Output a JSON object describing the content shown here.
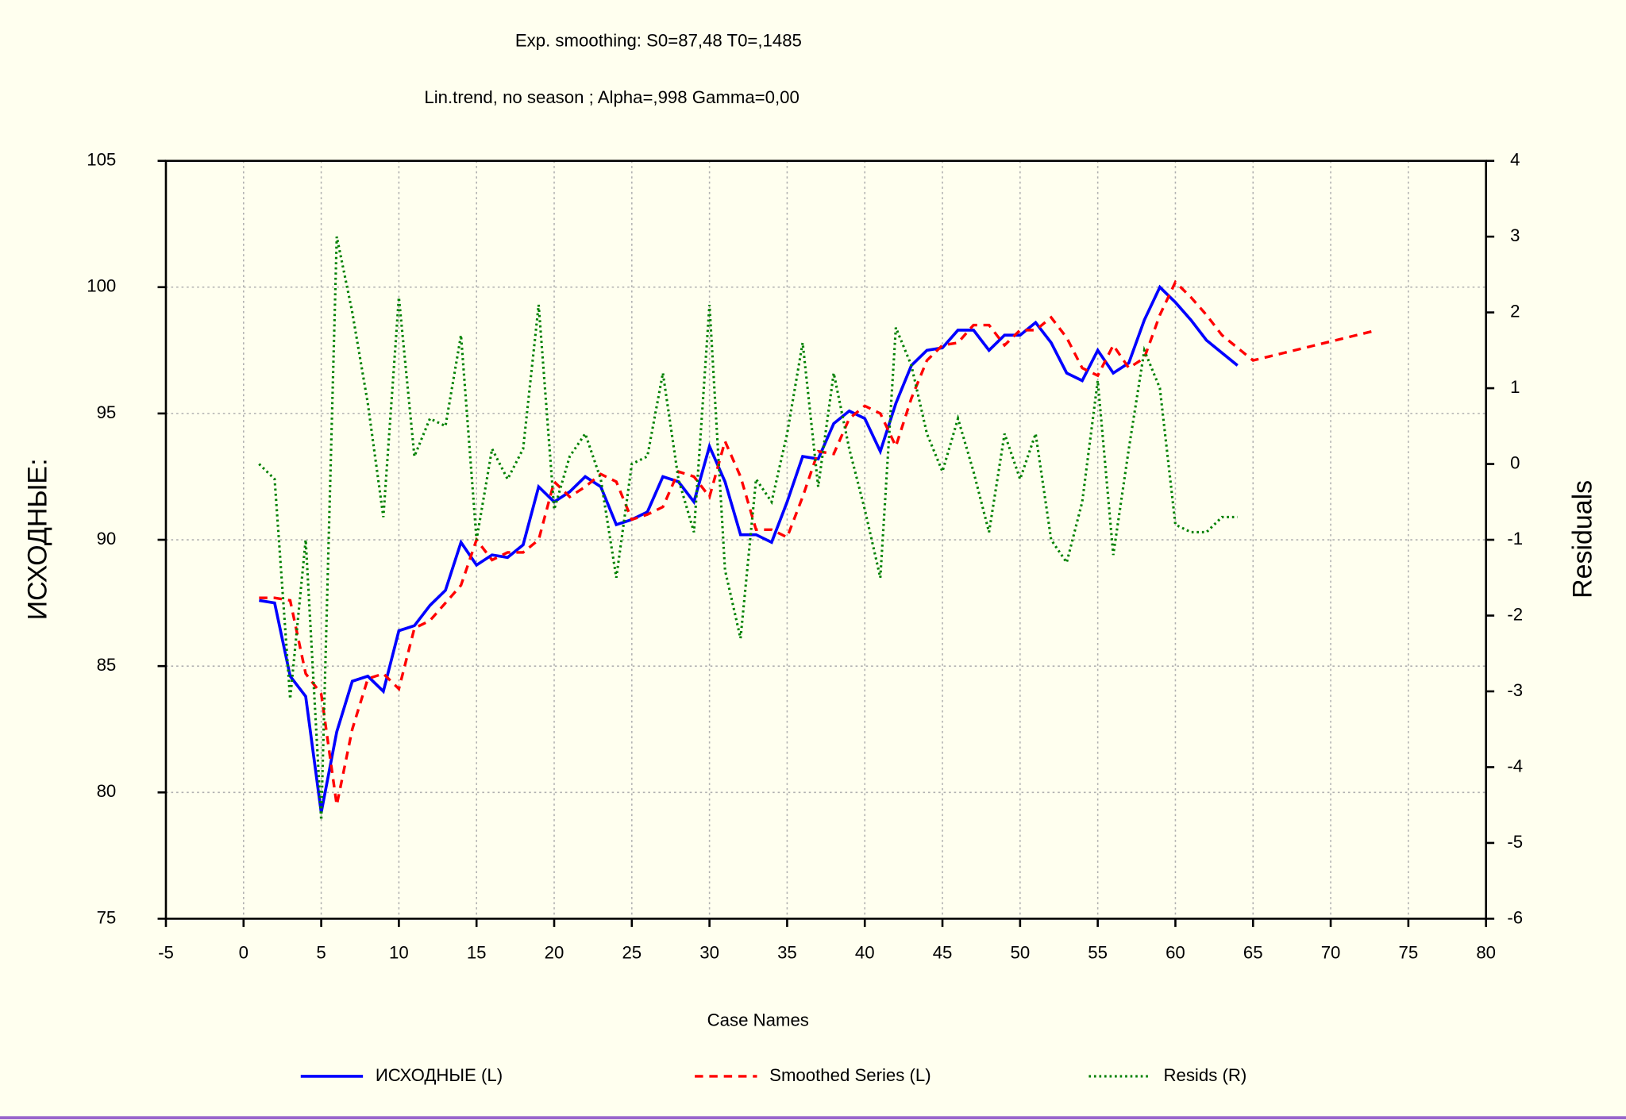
{
  "chart_data": {
    "type": "line",
    "title": "Exp. smoothing: S0=87,48 T0=,1485",
    "subtitle": "Lin.trend, no season ; Alpha=,998 Gamma=0,00",
    "x_label": "Case Names",
    "y_label": "ИСХОДНЫЕ:",
    "y2_label": "Residuals",
    "x": [
      1,
      2,
      3,
      4,
      5,
      6,
      7,
      8,
      9,
      10,
      11,
      12,
      13,
      14,
      15,
      16,
      17,
      18,
      19,
      20,
      21,
      22,
      23,
      24,
      25,
      26,
      27,
      28,
      29,
      30,
      31,
      32,
      33,
      34,
      35,
      36,
      37,
      38,
      39,
      40,
      41,
      42,
      43,
      44,
      45,
      46,
      47,
      48,
      49,
      50,
      51,
      52,
      53,
      54,
      55,
      56,
      57,
      58,
      59,
      60,
      61,
      62,
      63,
      64,
      65,
      66,
      67,
      68,
      69,
      70,
      71,
      72,
      73
    ],
    "series": [
      {
        "name": "ИСХОДНЫЕ (L)",
        "color": "#0000ff",
        "dash": "solid",
        "axis": "y",
        "values": [
          87.6,
          87.5,
          84.6,
          83.8,
          79.2,
          82.4,
          84.4,
          84.6,
          84.0,
          86.4,
          86.6,
          87.4,
          88.0,
          89.9,
          89.0,
          89.4,
          89.3,
          89.8,
          92.1,
          91.5,
          91.9,
          92.5,
          92.1,
          90.6,
          90.8,
          91.1,
          92.5,
          92.3,
          91.5,
          93.7,
          92.3,
          90.2,
          90.2,
          89.9,
          91.5,
          93.3,
          93.2,
          94.6,
          95.1,
          94.8,
          93.5,
          95.4,
          96.9,
          97.5,
          97.6,
          98.3,
          98.3,
          97.5,
          98.1,
          98.1,
          98.6,
          97.8,
          96.6,
          96.3,
          97.5,
          96.6,
          97.0,
          98.7,
          100.0,
          99.4,
          98.7,
          97.9,
          97.4,
          96.9,
          null,
          null,
          null,
          null,
          null,
          null,
          null,
          null,
          null
        ]
      },
      {
        "name": "Smoothed Series (L)",
        "color": "#ff0000",
        "dash": "dashed",
        "axis": "y",
        "values": [
          87.7,
          87.7,
          87.6,
          84.7,
          83.9,
          79.5,
          82.5,
          84.5,
          84.7,
          84.1,
          86.5,
          86.8,
          87.5,
          88.2,
          90.0,
          89.2,
          89.5,
          89.5,
          90.0,
          92.3,
          91.7,
          92.1,
          92.6,
          92.3,
          90.8,
          91.0,
          91.3,
          92.7,
          92.5,
          91.7,
          93.9,
          92.5,
          90.4,
          90.4,
          90.1,
          91.7,
          93.5,
          93.4,
          94.8,
          95.3,
          95.0,
          93.7,
          95.6,
          97.1,
          97.7,
          97.8,
          98.5,
          98.5,
          97.7,
          98.3,
          98.3,
          98.8,
          98.0,
          96.8,
          96.5,
          97.7,
          96.8,
          97.2,
          98.9,
          100.2,
          99.6,
          98.9,
          98.1,
          97.6,
          97.1,
          97.25,
          97.4,
          97.55,
          97.7,
          97.85,
          98.0,
          98.15,
          98.3
        ]
      },
      {
        "name": "Resids (R)",
        "color": "#008000",
        "dash": "dotted",
        "axis": "y2",
        "values": [
          0.0,
          -0.2,
          -3.1,
          -1.0,
          -4.7,
          3.0,
          2.0,
          0.8,
          -0.7,
          2.2,
          0.1,
          0.6,
          0.5,
          1.7,
          -1.0,
          0.2,
          -0.2,
          0.2,
          2.1,
          -0.6,
          0.1,
          0.4,
          -0.2,
          -1.5,
          0.0,
          0.1,
          1.2,
          -0.2,
          -0.9,
          2.1,
          -1.4,
          -2.3,
          -0.2,
          -0.5,
          0.4,
          1.6,
          -0.3,
          1.2,
          0.2,
          -0.6,
          -1.5,
          1.8,
          1.3,
          0.4,
          -0.1,
          0.6,
          -0.1,
          -0.9,
          0.4,
          -0.2,
          0.4,
          -1.0,
          -1.3,
          -0.5,
          1.1,
          -1.2,
          0.2,
          1.5,
          1.0,
          -0.8,
          -0.9,
          -0.9,
          -0.7,
          -0.7,
          null,
          null,
          null,
          null,
          null,
          null,
          null,
          null,
          null
        ]
      }
    ],
    "xlim": [
      -5,
      80
    ],
    "xticks": [
      -5,
      0,
      5,
      10,
      15,
      20,
      25,
      30,
      35,
      40,
      45,
      50,
      55,
      60,
      65,
      70,
      75,
      80
    ],
    "ylim": [
      75,
      105
    ],
    "yticks": [
      75,
      80,
      85,
      90,
      95,
      100,
      105
    ],
    "y2lim": [
      -6,
      4
    ],
    "y2ticks": [
      -6,
      -5,
      -4,
      -3,
      -2,
      -1,
      0,
      1,
      2,
      3,
      4
    ],
    "grid": true,
    "legend": "bottom"
  }
}
